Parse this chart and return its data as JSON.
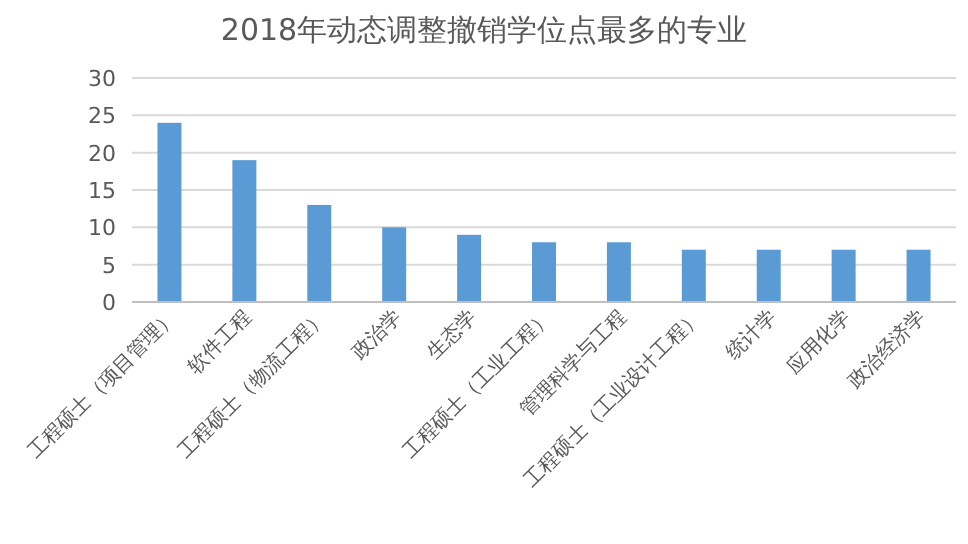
{
  "chart_data": {
    "type": "bar",
    "title": "2018年动态调整撤销学位点最多的专业",
    "categories": [
      "工程硕士（项目管理）",
      "软件工程",
      "工程硕士（物流工程）",
      "政治学",
      "生态学",
      "工程硕士（工业工程）",
      "管理科学与工程",
      "工程硕士（工业设计工程）",
      "统计学",
      "应用化学",
      "政治经济学"
    ],
    "values": [
      24,
      19,
      13,
      10,
      9,
      8,
      8,
      7,
      7,
      7,
      7
    ],
    "color": "#5b9bd5",
    "ylim": [
      0,
      30
    ],
    "yticks": [
      0,
      5,
      10,
      15,
      20,
      25,
      30
    ],
    "grid": "y"
  }
}
